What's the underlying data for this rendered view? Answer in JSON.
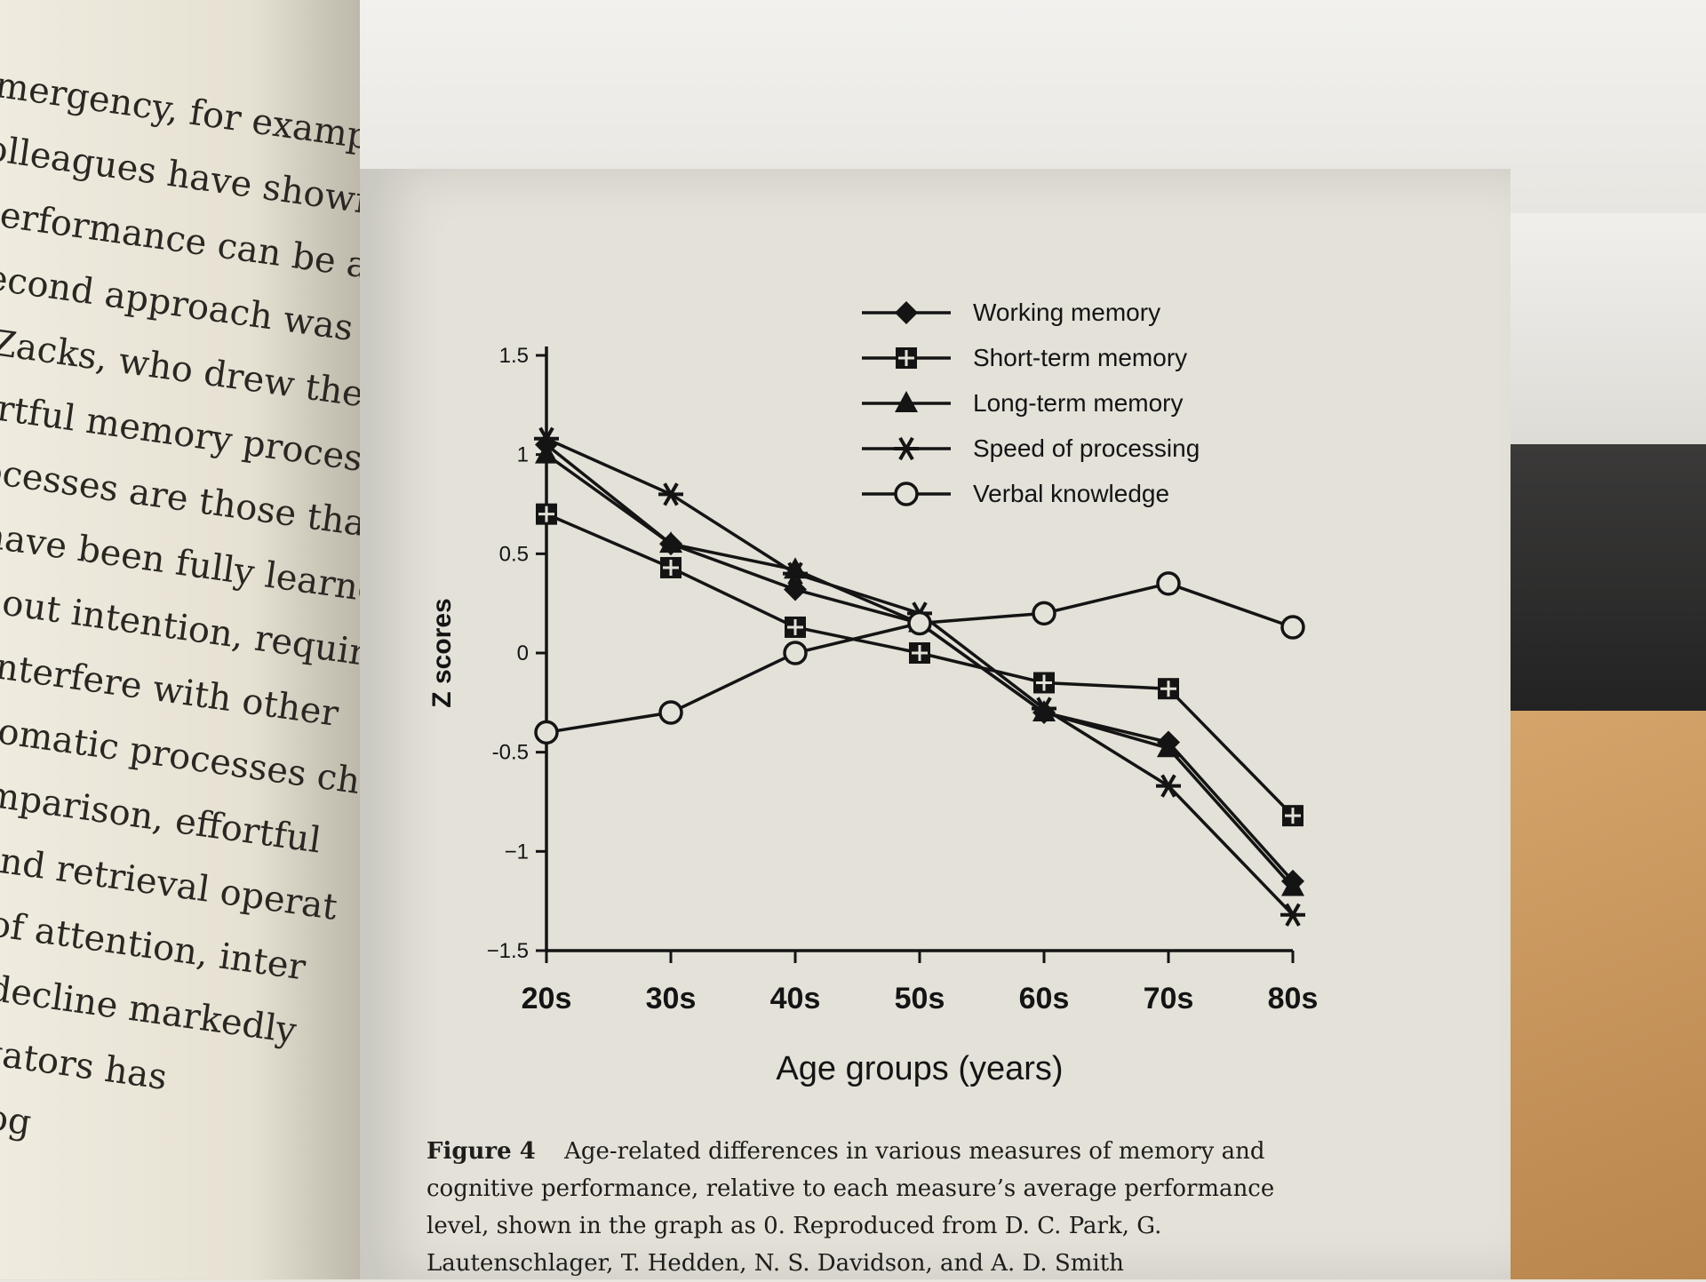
{
  "left_page": {
    "lines": [
      "mergency, for example—and",
      "olleagues have shown that de",
      "performance can be attribute",
      "second approach was sugge",
      "e Zacks, who drew the distinct",
      "ffortful memory processes.",
      "processes are those that are",
      "or have been fully learned; th",
      "without intention, require",
      "not interfere with other",
      "h automatic processes chang",
      "In comparison, effortful",
      "ning and retrieval operat",
      "ounts of attention, inter",
      "s, and decline markedly",
      "investigators has",
      "ent of cog"
    ]
  },
  "chart_data": {
    "type": "line",
    "xlabel": "Age groups (years)",
    "ylabel": "Z scores",
    "categories": [
      "20s",
      "30s",
      "40s",
      "50s",
      "60s",
      "70s",
      "80s"
    ],
    "ylim": [
      -1.5,
      1.5
    ],
    "yticks": [
      "1.5",
      "1",
      "0.5",
      "0",
      "-0.5",
      "−1",
      "−1.5"
    ],
    "ytick_values": [
      1.5,
      1,
      0.5,
      0,
      -0.5,
      -1,
      -1.5
    ],
    "legend_position": "top-right",
    "series": [
      {
        "name": "Working memory",
        "marker": "diamond",
        "values": [
          1.05,
          0.55,
          0.32,
          0.15,
          -0.3,
          -0.45,
          -1.15
        ]
      },
      {
        "name": "Short-term memory",
        "marker": "square-cross",
        "values": [
          0.7,
          0.43,
          0.13,
          0.0,
          -0.15,
          -0.18,
          -0.82
        ]
      },
      {
        "name": "Long-term memory",
        "marker": "triangle",
        "values": [
          1.0,
          0.55,
          0.42,
          0.15,
          -0.3,
          -0.48,
          -1.18
        ]
      },
      {
        "name": "Speed of processing",
        "marker": "asterisk",
        "values": [
          1.08,
          0.8,
          0.4,
          0.2,
          -0.28,
          -0.67,
          -1.32
        ]
      },
      {
        "name": "Verbal knowledge",
        "marker": "circle",
        "values": [
          -0.4,
          -0.3,
          0.0,
          0.15,
          0.2,
          0.35,
          0.13
        ]
      }
    ]
  },
  "caption": {
    "label": "Figure 4",
    "text": "Age-related differences in various measures of memory and cognitive performance, relative to each measure’s average performance level, shown in the graph as 0. Reproduced from D. C. Park, G. Lautenschlager, T. Hedden, N. S. Davidson, and A. D. Smith"
  },
  "colors": {
    "ink": "#141414",
    "page": "#e3e1d8"
  }
}
